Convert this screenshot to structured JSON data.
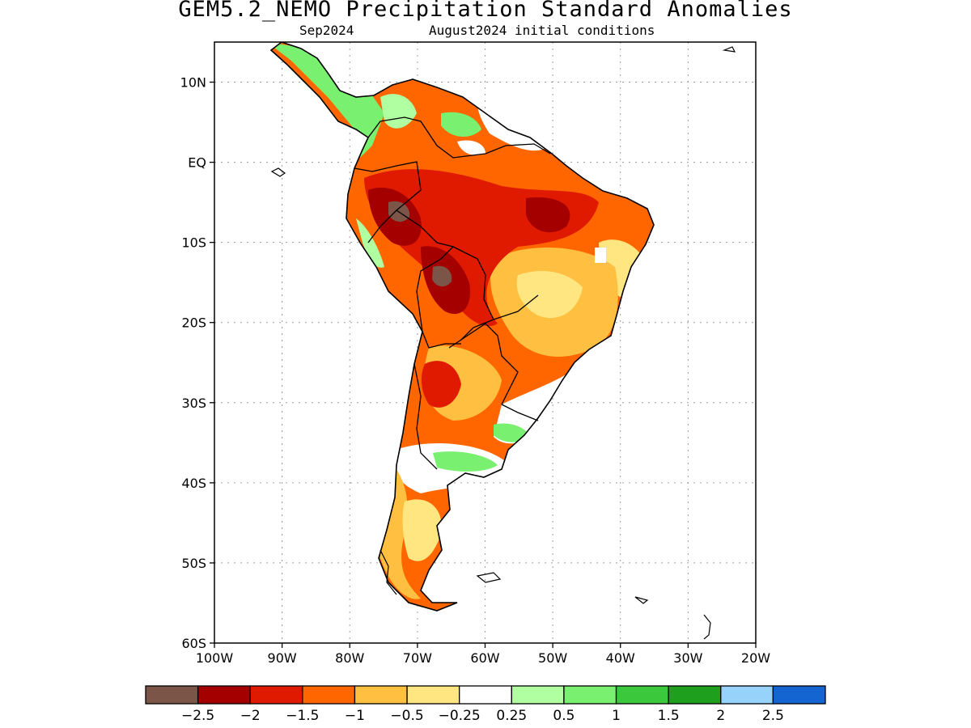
{
  "figure": {
    "title": "GEM5.2_NEMO Precipitation Standard Anomalies",
    "subtitle_left": "Sep2024",
    "subtitle_right": "August2024 initial conditions"
  },
  "map": {
    "region": "South America",
    "lon_range": [
      -100,
      -20
    ],
    "lat_range": [
      -60,
      15
    ],
    "grid": "dotted",
    "lat_labels": [
      "10N",
      "EQ",
      "10S",
      "20S",
      "30S",
      "40S",
      "50S",
      "60S"
    ],
    "lat_values": [
      10,
      0,
      -10,
      -20,
      -30,
      -40,
      -50,
      -60
    ],
    "lon_labels": [
      "100W",
      "90W",
      "80W",
      "70W",
      "60W",
      "50W",
      "40W",
      "30W",
      "20W"
    ],
    "lon_values": [
      -100,
      -90,
      -80,
      -70,
      -60,
      -50,
      -40,
      -30,
      -20
    ]
  },
  "colorbar": {
    "colors": [
      "#7b5548",
      "#a50000",
      "#e01a00",
      "#ff6600",
      "#ffbf40",
      "#ffe680",
      "#ffffff",
      "#b0ffa0",
      "#7af070",
      "#3cc83c",
      "#1ea01e",
      "#96d2fa",
      "#1464d2"
    ],
    "labels": [
      "-2.5",
      "-2",
      "-1.5",
      "-1",
      "-0.5",
      "-0.25",
      "0.25",
      "0.5",
      "1",
      "1.5",
      "2",
      "2.5"
    ]
  }
}
